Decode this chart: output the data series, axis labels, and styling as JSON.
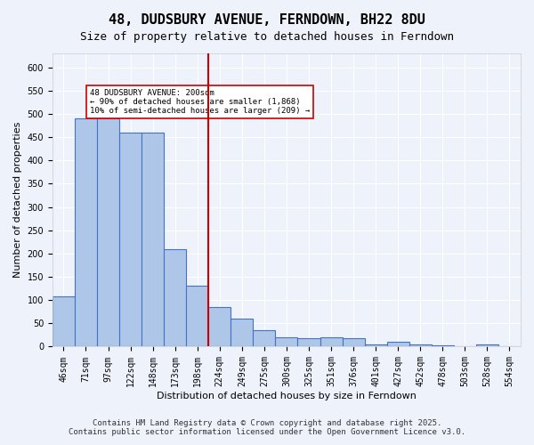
{
  "title": "48, DUDSBURY AVENUE, FERNDOWN, BH22 8DU",
  "subtitle": "Size of property relative to detached houses in Ferndown",
  "xlabel": "Distribution of detached houses by size in Ferndown",
  "ylabel": "Number of detached properties",
  "categories": [
    "46sqm",
    "71sqm",
    "97sqm",
    "122sqm",
    "148sqm",
    "173sqm",
    "198sqm",
    "224sqm",
    "249sqm",
    "275sqm",
    "300sqm",
    "325sqm",
    "351sqm",
    "376sqm",
    "401sqm",
    "427sqm",
    "452sqm",
    "478sqm",
    "503sqm",
    "528sqm",
    "554sqm"
  ],
  "values": [
    108,
    490,
    490,
    460,
    460,
    210,
    130,
    85,
    60,
    35,
    20,
    18,
    20,
    18,
    5,
    10,
    5,
    2,
    0,
    5,
    0
  ],
  "bar_color": "#aec6e8",
  "bar_edge_color": "#4472c4",
  "vline_x": 6,
  "vline_color": "#cc0000",
  "annotation_text": "48 DUDSBURY AVENUE: 200sqm\n← 90% of detached houses are smaller (1,868)\n10% of semi-detached houses are larger (209) →",
  "annotation_box_color": "#ffffff",
  "annotation_box_edge": "#cc0000",
  "ylim": [
    0,
    630
  ],
  "yticks": [
    0,
    50,
    100,
    150,
    200,
    250,
    300,
    350,
    400,
    450,
    500,
    550,
    600
  ],
  "footer_line1": "Contains HM Land Registry data © Crown copyright and database right 2025.",
  "footer_line2": "Contains public sector information licensed under the Open Government Licence v3.0.",
  "background_color": "#eef2fb",
  "grid_color": "#ffffff",
  "title_fontsize": 11,
  "subtitle_fontsize": 9,
  "axis_fontsize": 8,
  "tick_fontsize": 7,
  "footer_fontsize": 6.5
}
